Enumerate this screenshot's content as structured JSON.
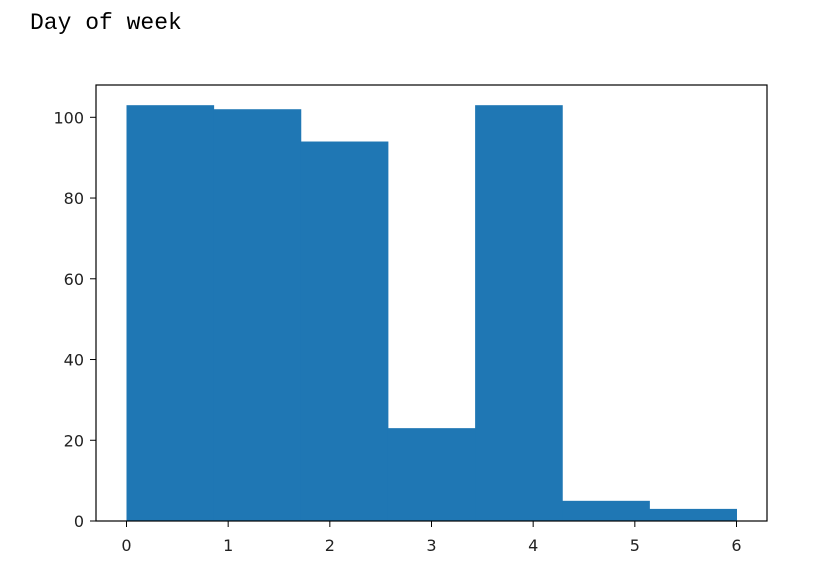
{
  "title": "Day of week",
  "chart_data": {
    "type": "bar",
    "title": "Day of week",
    "xlabel": "",
    "ylabel": "",
    "bin_edges": [
      0,
      0.857,
      1.714,
      2.571,
      3.429,
      4.286,
      5.143,
      6
    ],
    "values": [
      103,
      102,
      94,
      23,
      103,
      5,
      3
    ],
    "xlim": [
      -0.3,
      6.3
    ],
    "ylim": [
      0,
      108
    ],
    "x_ticks": [
      0,
      1,
      2,
      3,
      4,
      5,
      6
    ],
    "y_ticks": [
      0,
      20,
      40,
      60,
      80,
      100
    ],
    "grid": false,
    "bar_color": "#1f77b4"
  }
}
